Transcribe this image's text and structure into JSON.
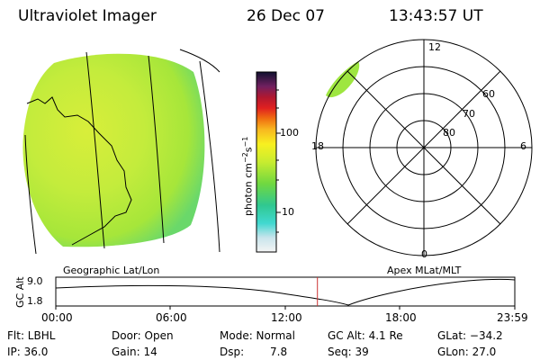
{
  "header": {
    "title": "Ultraviolet Imager",
    "date": "26 Dec 07",
    "time": "13:43:57 UT"
  },
  "colorbar": {
    "label_prefix": "photon cm",
    "label_exp1": "−2",
    "label_mid": "s",
    "label_exp2": "−1",
    "ticks": [
      "100",
      "10"
    ]
  },
  "geo_panel": {
    "caption": "Geographic Lat/Lon"
  },
  "polar_plot": {
    "caption": "Apex MLat/MLT",
    "mlt_labels": {
      "top": "12",
      "bottom": "0",
      "left": "18",
      "right": "6"
    },
    "lat_labels": [
      "60",
      "70",
      "80"
    ]
  },
  "altitude_strip": {
    "ylabel": "GC Alt",
    "ytick_high": "9.0",
    "ytick_low": "1.8",
    "x_ticks": [
      "00:00",
      "06:00",
      "12:00",
      "18:00",
      "23:59"
    ],
    "current_time_fraction": 0.57
  },
  "footer": {
    "flt": "Flt: LBHL",
    "ip": "IP: 36.0",
    "door": "Door: Open",
    "gain": "Gain: 14",
    "mode": "Mode: Normal",
    "dsp_label": "Dsp:",
    "dsp_value": "7.8",
    "gc_alt": "GC Alt: 4.1 Re",
    "seq": "Seq: 39",
    "glat": "GLat: −34.2",
    "glon": "GLon: 27.0"
  },
  "colors": {
    "image_fill": "#b8ea3a",
    "marker_line": "#cc3333"
  }
}
